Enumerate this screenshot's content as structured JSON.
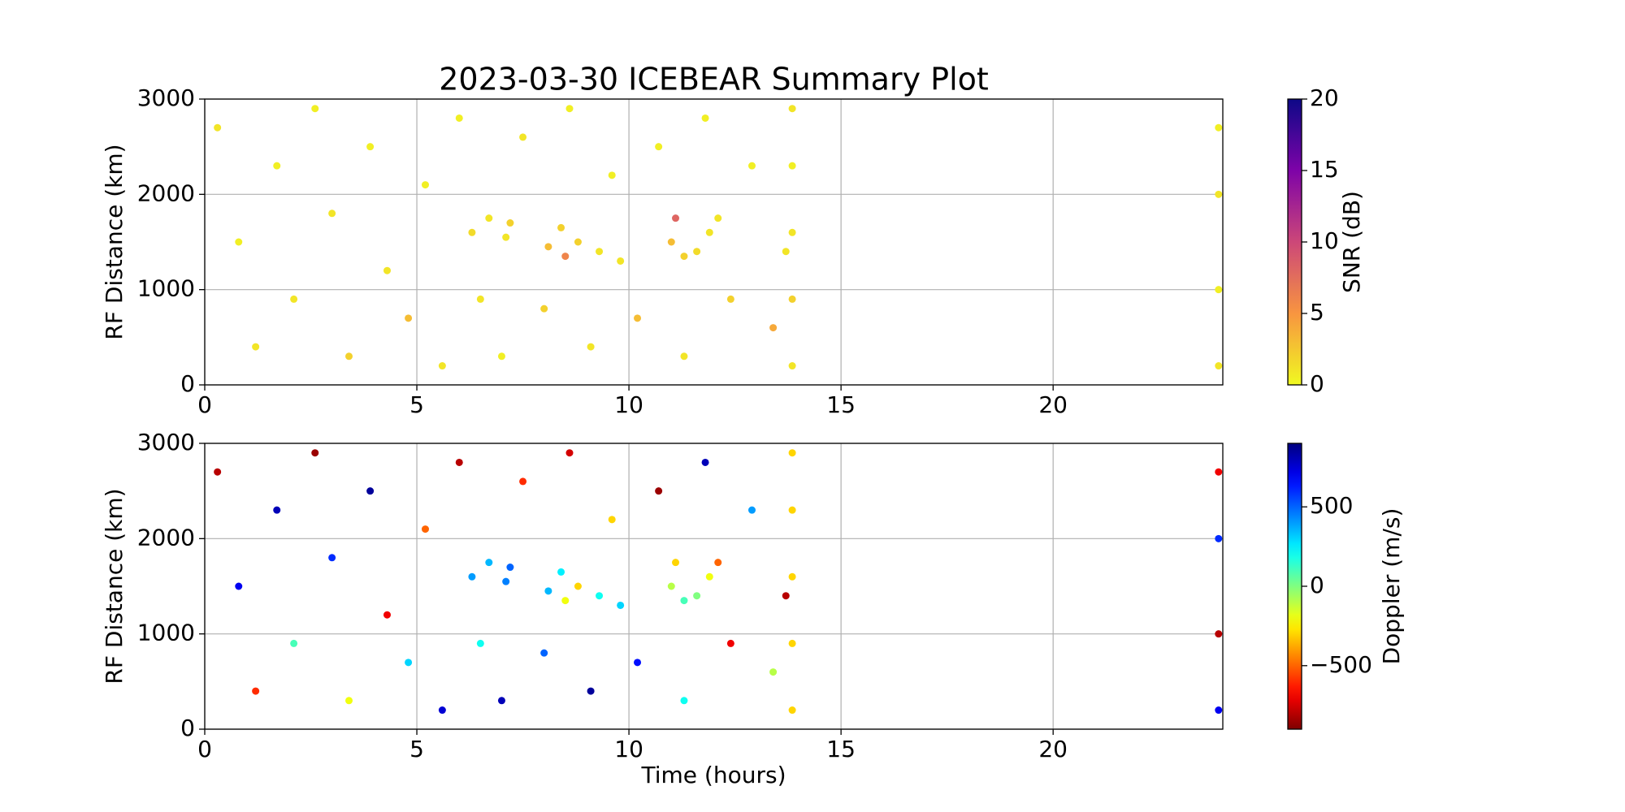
{
  "chart_data": [
    {
      "type": "scatter",
      "title": "2023-03-30 ICEBEAR Summary Plot",
      "ylabel": "RF Distance (km)",
      "xlim": [
        0,
        24
      ],
      "xticks": [
        0,
        5,
        10,
        15,
        20
      ],
      "ylim": [
        0,
        3000
      ],
      "yticks": [
        0,
        1000,
        2000,
        3000
      ],
      "grid": true,
      "x": [
        0.3,
        0.8,
        1.2,
        1.7,
        2.1,
        2.6,
        3.0,
        3.4,
        3.9,
        4.3,
        4.8,
        5.2,
        5.6,
        6.0,
        6.5,
        7.0,
        7.5,
        8.0,
        8.6,
        9.1,
        9.6,
        10.2,
        10.7,
        11.3,
        11.8,
        12.4,
        12.9,
        13.4,
        13.7,
        6.3,
        6.7,
        7.2,
        7.1,
        8.1,
        8.4,
        8.5,
        8.8,
        9.3,
        9.8,
        11.0,
        11.1,
        11.3,
        11.6,
        11.9,
        12.1,
        13.85,
        13.85,
        13.85,
        13.85,
        13.85,
        23.9,
        23.9,
        23.9,
        23.9
      ],
      "y": [
        2700,
        1500,
        400,
        2300,
        900,
        2900,
        1800,
        300,
        2500,
        1200,
        700,
        2100,
        200,
        2800,
        900,
        300,
        2600,
        800,
        2900,
        400,
        2200,
        700,
        2500,
        300,
        2800,
        900,
        2300,
        600,
        1400,
        1600,
        1750,
        1700,
        1550,
        1450,
        1650,
        1350,
        1500,
        1400,
        1300,
        1500,
        1750,
        1350,
        1400,
        1600,
        1750,
        200,
        900,
        1600,
        2300,
        2900,
        200,
        1000,
        2000,
        2700
      ],
      "c": [
        1,
        0.5,
        1,
        0.5,
        1,
        0.5,
        1,
        2,
        0.5,
        1,
        3,
        0.5,
        1,
        0.5,
        1,
        0.5,
        1,
        2,
        0.5,
        1,
        0.5,
        3,
        0.5,
        1,
        0.5,
        2,
        0.5,
        4,
        1,
        1.5,
        1,
        2,
        1,
        3,
        2,
        6,
        2,
        1,
        1,
        3,
        8,
        2,
        1.5,
        1,
        1,
        1,
        2,
        1,
        0.5,
        1,
        1,
        0.5,
        1,
        0.5
      ],
      "colorbar": {
        "label": "SNR (dB)",
        "colormap": "plasma_r",
        "lim": [
          0,
          20
        ],
        "ticks": [
          0,
          5,
          10,
          15,
          20
        ]
      }
    },
    {
      "type": "scatter",
      "ylabel": "RF Distance (km)",
      "xlabel": "Time (hours)",
      "xlim": [
        0,
        24
      ],
      "xticks": [
        0,
        5,
        10,
        15,
        20
      ],
      "ylim": [
        0,
        3000
      ],
      "yticks": [
        0,
        1000,
        2000,
        3000
      ],
      "grid": true,
      "x": [
        0.3,
        0.8,
        1.2,
        1.7,
        2.1,
        2.6,
        3.0,
        3.4,
        3.9,
        4.3,
        4.8,
        5.2,
        5.6,
        6.0,
        6.5,
        7.0,
        7.5,
        8.0,
        8.6,
        9.1,
        9.6,
        10.2,
        10.7,
        11.3,
        11.8,
        12.4,
        12.9,
        13.4,
        13.7,
        6.3,
        6.7,
        7.2,
        7.1,
        8.1,
        8.4,
        8.5,
        8.8,
        9.3,
        9.8,
        11.0,
        11.1,
        11.3,
        11.6,
        11.9,
        12.1,
        13.85,
        13.85,
        13.85,
        13.85,
        13.85,
        23.9,
        23.9,
        23.9,
        23.9
      ],
      "y": [
        2700,
        1500,
        400,
        2300,
        900,
        2900,
        1800,
        300,
        2500,
        1200,
        700,
        2100,
        200,
        2800,
        900,
        300,
        2600,
        800,
        2900,
        400,
        2200,
        700,
        2500,
        300,
        2800,
        900,
        2300,
        600,
        1400,
        1600,
        1750,
        1700,
        1550,
        1450,
        1650,
        1350,
        1500,
        1400,
        1300,
        1500,
        1750,
        1350,
        1400,
        1600,
        1750,
        200,
        900,
        1600,
        2300,
        2900,
        200,
        1000,
        2000,
        2700
      ],
      "c": [
        -800,
        700,
        -600,
        800,
        100,
        -850,
        600,
        -200,
        850,
        -700,
        300,
        -500,
        750,
        -800,
        200,
        800,
        -600,
        500,
        -750,
        850,
        -300,
        650,
        -850,
        200,
        800,
        -700,
        400,
        -100,
        -800,
        400,
        350,
        500,
        450,
        350,
        250,
        -200,
        -300,
        200,
        300,
        -100,
        -300,
        100,
        0,
        -200,
        -500,
        -300,
        -300,
        -300,
        -300,
        -300,
        700,
        -800,
        600,
        -700
      ],
      "colorbar": {
        "label": "Doppler (m/s)",
        "colormap": "jet_r",
        "lim": [
          -900,
          900
        ],
        "ticks": [
          {
            "value": -500,
            "label": "−500"
          },
          0,
          500
        ]
      }
    }
  ]
}
